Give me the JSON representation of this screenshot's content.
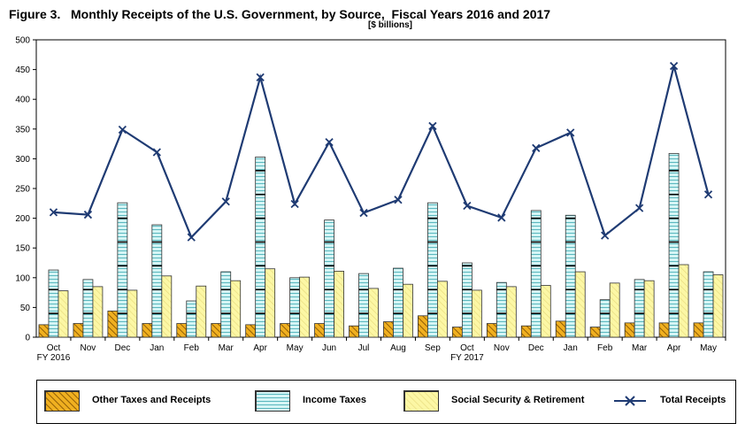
{
  "chart_data": {
    "type": "bar",
    "title": "Figure 3.   Monthly Receipts of the U.S. Government, by Source,  Fiscal Years 2016 and 2017",
    "subtitle": "[$ billions]",
    "categories": [
      "Oct",
      "Nov",
      "Dec",
      "Jan",
      "Feb",
      "Mar",
      "Apr",
      "May",
      "Jun",
      "Jul",
      "Aug",
      "Sep",
      "Oct",
      "Nov",
      "Dec",
      "Jan",
      "Feb",
      "Mar",
      "Apr",
      "May"
    ],
    "category_sublabels": [
      {
        "index": 0,
        "label": "FY 2016"
      },
      {
        "index": 12,
        "label": "FY 2017"
      }
    ],
    "ylim": [
      0,
      500
    ],
    "yticks": [
      0,
      50,
      100,
      150,
      200,
      250,
      300,
      350,
      400,
      450,
      500
    ],
    "grid": false,
    "legend_position": "bottom",
    "series": [
      {
        "name": "Other Taxes and Receipts",
        "kind": "bar",
        "color": "#f0b020",
        "values": [
          21,
          23,
          44,
          23,
          23,
          23,
          21,
          23,
          23,
          19,
          26,
          36,
          17,
          23,
          19,
          27,
          17,
          24,
          24,
          24
        ]
      },
      {
        "name": "Income Taxes",
        "kind": "bar",
        "color": "#d5f5f5",
        "values": [
          113,
          97,
          226,
          189,
          61,
          110,
          303,
          100,
          197,
          107,
          116,
          226,
          125,
          92,
          213,
          205,
          63,
          97,
          309,
          110
        ]
      },
      {
        "name": "Social Security & Retirement",
        "kind": "bar",
        "color": "#fcf7a5",
        "values": [
          78,
          85,
          79,
          103,
          86,
          95,
          115,
          101,
          111,
          82,
          89,
          94,
          79,
          85,
          87,
          110,
          91,
          95,
          122,
          105
        ]
      },
      {
        "name": "Total Receipts",
        "kind": "line",
        "color": "#1f3b73",
        "values": [
          210,
          206,
          349,
          311,
          168,
          228,
          437,
          224,
          328,
          209,
          231,
          355,
          221,
          201,
          318,
          344,
          171,
          217,
          456,
          240
        ]
      }
    ]
  }
}
